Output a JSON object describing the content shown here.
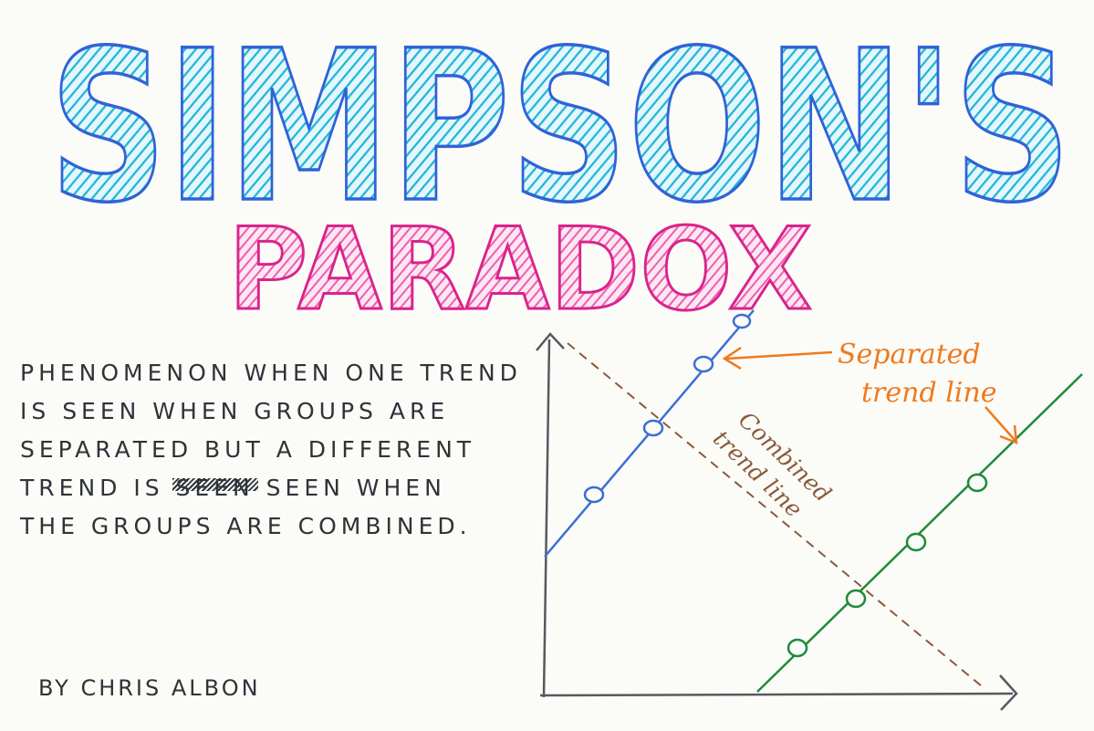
{
  "title": {
    "line1": "SIMPSON'S",
    "line2": "PARADOX",
    "line1_color": "#22b4d8",
    "line1_outline": "#2f63d6",
    "line2_color": "#ee5fae",
    "line2_outline": "#d9248b"
  },
  "definition": {
    "lines": [
      "PHENOMENON WHEN ONE TREND",
      "IS SEEN WHEN GROUPS ARE",
      "SEPARATED BUT A DIFFERENT",
      "TREND IS",
      "SEEN WHEN",
      "THE GROUPS ARE COMBINED."
    ],
    "struck_word": "seen",
    "text_color": "#2f3338"
  },
  "byline": "BY CHRIS ALBON",
  "diagram": {
    "separated_label_line1": "Separated",
    "separated_label_line2": "trend line",
    "combined_label_line1": "Combined",
    "combined_label_line2": "trend line",
    "colors": {
      "group_a": "#3b6fd4",
      "group_b": "#1f8a3a",
      "combined": "#8a5a3a",
      "annotation": "#f07a1e",
      "axes": "#555a60"
    },
    "icons": {
      "arrow_to_line": "arrow-left-icon",
      "arrow_to_green": "arrow-down-right-icon"
    }
  }
}
